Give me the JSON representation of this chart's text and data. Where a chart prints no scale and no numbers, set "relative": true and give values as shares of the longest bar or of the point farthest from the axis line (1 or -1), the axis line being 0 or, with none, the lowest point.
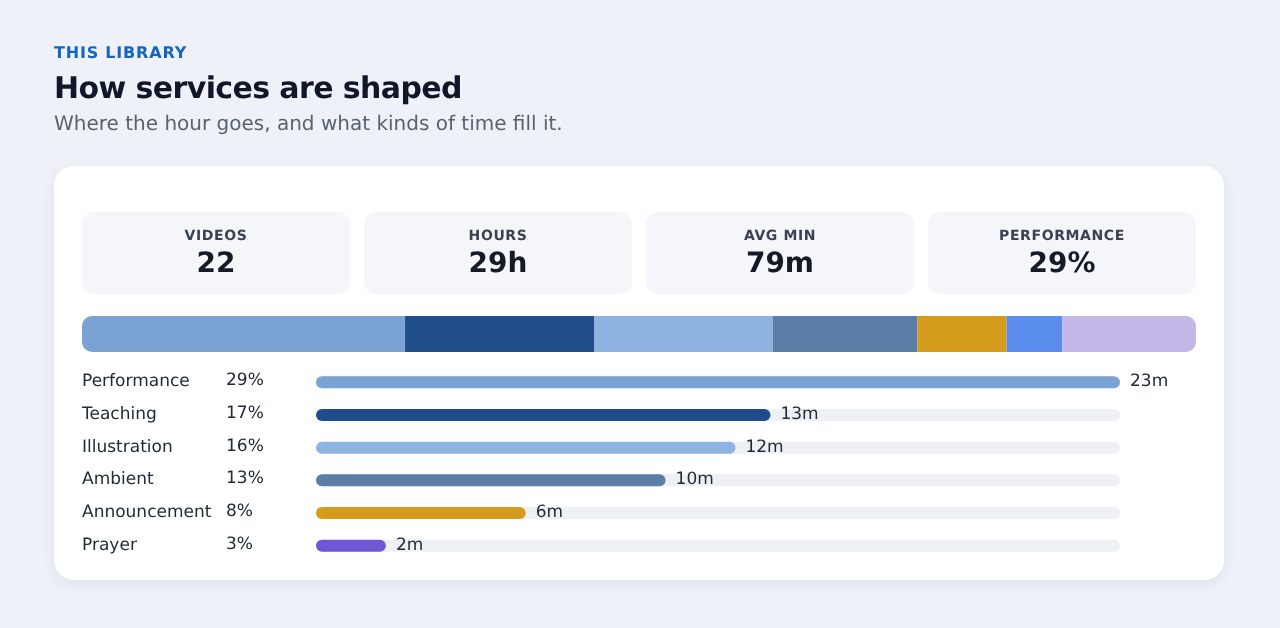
{
  "chart_data": [
    {
      "type": "other",
      "title": "How services are shaped",
      "subtitle": "Where the hour goes, and what kinds of time fill it.",
      "annotations": [
        "THIS LIBRARY"
      ],
      "categories": [
        "VIDEOS",
        "HOURS",
        "AVG MIN",
        "PERFORMANCE"
      ],
      "value_labels": [
        "22",
        "29h",
        "79m",
        "29%"
      ]
    },
    {
      "type": "bar",
      "orientation": "horizontal",
      "stacked": true,
      "relative": true,
      "categories": [
        null
      ],
      "series": [
        {
          "color": "#7aa3d4",
          "values": [
            0.29
          ]
        },
        {
          "color": "#1e4d8a",
          "values": [
            0.17
          ]
        },
        {
          "color": "#8fb3e0",
          "values": [
            0.16
          ]
        },
        {
          "color": "#5a7ea6",
          "values": [
            0.13
          ]
        },
        {
          "color": "#d49b1c",
          "values": [
            0.08
          ]
        },
        {
          "color": "#5b8def",
          "values": [
            0.05
          ]
        },
        {
          "color": "#c4b6e6",
          "values": [
            0.12
          ]
        }
      ]
    },
    {
      "type": "bar",
      "orientation": "horizontal",
      "categories": [
        "Performance",
        "Teaching",
        "Illustration",
        "Ambient",
        "Announcement",
        "Prayer"
      ],
      "values": [
        23,
        13,
        12,
        10,
        6,
        2
      ],
      "colors": [
        "#7aa3d4",
        "#1e4d8a",
        "#8fb3e0",
        "#5a7ea6",
        "#d49b1c",
        "#7057d6"
      ],
      "value_labels": [
        "23m",
        "13m",
        "12m",
        "10m",
        "6m",
        "2m"
      ],
      "xlim": [
        0,
        23
      ],
      "tick_labels": "y",
      "annotations": [
        "29%",
        "17%",
        "16%",
        "13%",
        "8%",
        "3%"
      ]
    }
  ]
}
